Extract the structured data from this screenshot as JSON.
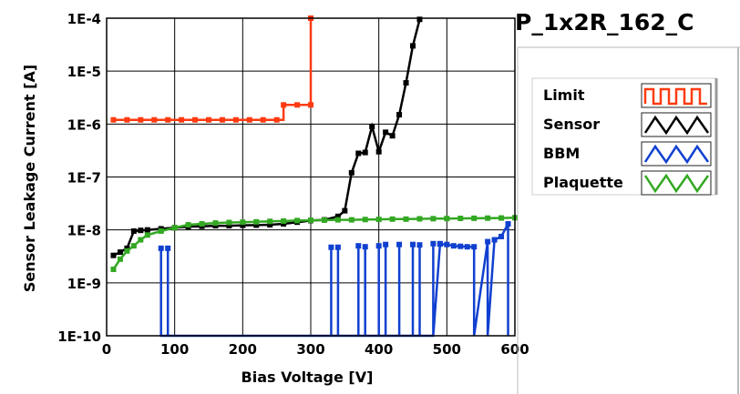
{
  "chart_data": {
    "type": "line",
    "title": "P_1x2R_162_C",
    "xlabel": "Bias Voltage [V]",
    "ylabel": "Sensor Leakage Current [A]",
    "xlim": [
      0,
      600
    ],
    "ylim": [
      1e-10,
      0.0001
    ],
    "yscale": "log",
    "grid": true,
    "legend_position": "right",
    "x_ticks": [
      "0",
      "100",
      "200",
      "300",
      "400",
      "500",
      "600"
    ],
    "x_tick_values": [
      0,
      100,
      200,
      300,
      400,
      500,
      600
    ],
    "y_ticks": [
      "1E-10",
      "1E-9",
      "1E-8",
      "1E-7",
      "1E-6",
      "1E-5",
      "1E-4"
    ],
    "y_tick_values": [
      1e-10,
      1e-09,
      1e-08,
      1e-07,
      1e-06,
      1e-05,
      0.0001
    ],
    "series": [
      {
        "name": "Limit",
        "color": "#ff3a10",
        "step": true,
        "x": [
          10,
          30,
          50,
          70,
          90,
          110,
          130,
          150,
          170,
          190,
          210,
          230,
          250,
          260,
          280,
          300,
          300
        ],
        "y": [
          1.2e-06,
          1.2e-06,
          1.2e-06,
          1.2e-06,
          1.2e-06,
          1.2e-06,
          1.2e-06,
          1.2e-06,
          1.2e-06,
          1.2e-06,
          1.2e-06,
          1.2e-06,
          1.2e-06,
          2.3e-06,
          2.3e-06,
          2.3e-06,
          0.0001
        ]
      },
      {
        "name": "Sensor",
        "color": "#000000",
        "step": false,
        "x": [
          10,
          20,
          30,
          40,
          50,
          60,
          80,
          100,
          120,
          140,
          160,
          180,
          200,
          220,
          240,
          260,
          280,
          300,
          320,
          340,
          350,
          360,
          370,
          380,
          390,
          400,
          410,
          420,
          430,
          440,
          450,
          460
        ],
        "y": [
          3.3e-09,
          3.8e-09,
          4.5e-09,
          9.5e-09,
          9.8e-09,
          1e-08,
          1.05e-08,
          1.1e-08,
          1.15e-08,
          1.17e-08,
          1.2e-08,
          1.2e-08,
          1.22e-08,
          1.23e-08,
          1.25e-08,
          1.3e-08,
          1.4e-08,
          1.5e-08,
          1.55e-08,
          1.8e-08,
          2.3e-08,
          1.2e-07,
          2.8e-07,
          2.9e-07,
          9e-07,
          3e-07,
          7e-07,
          6e-07,
          1.5e-06,
          6e-06,
          3e-05,
          9.5e-05
        ]
      },
      {
        "name": "BBM",
        "color": "#1040d0",
        "step": false,
        "x": [
          80,
          80,
          80,
          90,
          90,
          90,
          330,
          330,
          330,
          340,
          340,
          340,
          370,
          370,
          370,
          380,
          380,
          380,
          400,
          400,
          400,
          410,
          410,
          410,
          430,
          430,
          430,
          450,
          450,
          450,
          460,
          460,
          460,
          480,
          480,
          480,
          490,
          490,
          500,
          510,
          520,
          530,
          540,
          540,
          540,
          560,
          560,
          570,
          580,
          590,
          590,
          590
        ],
        "y": [
          1e-10,
          4.5e-09,
          1e-10,
          1e-10,
          4.5e-09,
          1e-10,
          1e-10,
          4.7e-09,
          1e-10,
          1e-10,
          4.7e-09,
          1e-10,
          1e-10,
          5e-09,
          1e-10,
          1e-10,
          4.8e-09,
          1e-10,
          1e-10,
          5e-09,
          1e-10,
          1e-10,
          5.3e-09,
          1e-10,
          1e-10,
          5.3e-09,
          1e-10,
          1e-10,
          5.3e-09,
          1e-10,
          1e-10,
          5.2e-09,
          1e-10,
          1e-10,
          5.5e-09,
          1e-10,
          5.5e-09,
          5.4e-09,
          5.3e-09,
          5e-09,
          4.9e-09,
          4.8e-09,
          4.8e-09,
          1e-10,
          1e-10,
          6e-09,
          1e-10,
          6.5e-09,
          7.5e-09,
          1.3e-08,
          1e-10,
          1e-10
        ]
      },
      {
        "name": "Plaquette",
        "color": "#33a822",
        "step": false,
        "x": [
          10,
          20,
          30,
          40,
          50,
          60,
          80,
          100,
          120,
          140,
          160,
          180,
          200,
          220,
          240,
          260,
          280,
          300,
          320,
          340,
          360,
          380,
          400,
          420,
          440,
          460,
          480,
          500,
          520,
          540,
          560,
          580,
          600
        ],
        "y": [
          1.8e-09,
          2.8e-09,
          4e-09,
          5e-09,
          6.5e-09,
          8e-09,
          9.5e-09,
          1.1e-08,
          1.25e-08,
          1.3e-08,
          1.35e-08,
          1.38e-08,
          1.4e-08,
          1.42e-08,
          1.45e-08,
          1.47e-08,
          1.5e-08,
          1.52e-08,
          1.53e-08,
          1.55e-08,
          1.55e-08,
          1.57e-08,
          1.58e-08,
          1.6e-08,
          1.6e-08,
          1.62e-08,
          1.63e-08,
          1.64e-08,
          1.65e-08,
          1.66e-08,
          1.67e-08,
          1.68e-08,
          1.7e-08
        ]
      }
    ]
  }
}
